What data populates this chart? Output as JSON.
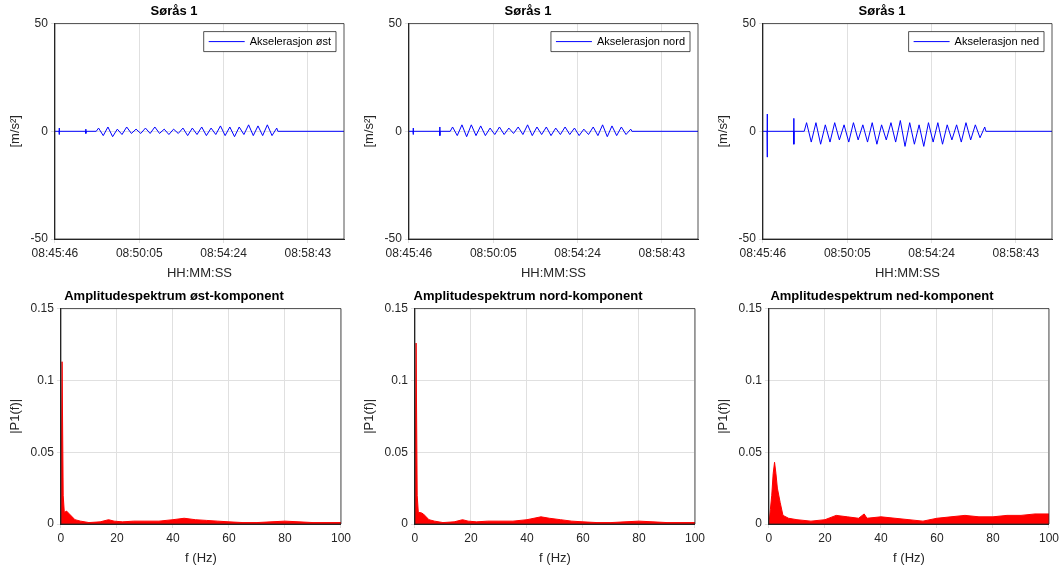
{
  "chart_data": [
    {
      "type": "line",
      "title": "Sørås 1",
      "xlabel": "HH:MM:SS",
      "ylabel": "[m/s²]",
      "grid": true,
      "legend": "top right",
      "xlim": [
        8.762778,
        9.0094
      ],
      "xticks": [
        {
          "value": 8.762778,
          "label": "08:45:46"
        },
        {
          "value": 8.834722,
          "label": "08:50:05"
        },
        {
          "value": 8.906667,
          "label": "08:54:24"
        },
        {
          "value": 8.978611,
          "label": "08:58:43"
        }
      ],
      "ylim": [
        -50,
        50
      ],
      "yticks": [
        -50,
        0,
        50
      ],
      "x": [
        8.7628,
        8.7663,
        8.7664,
        8.7665,
        8.7666,
        8.789,
        8.7891,
        8.7892,
        8.7893,
        8.798,
        8.8,
        8.804,
        8.808,
        8.812,
        8.816,
        8.82,
        8.824,
        8.828,
        8.832,
        8.836,
        8.84,
        8.844,
        8.848,
        8.852,
        8.856,
        8.86,
        8.864,
        8.868,
        8.872,
        8.876,
        8.88,
        8.884,
        8.888,
        8.892,
        8.896,
        8.9,
        8.904,
        8.908,
        8.912,
        8.916,
        8.92,
        8.924,
        8.928,
        8.932,
        8.936,
        8.94,
        8.944,
        8.948,
        8.952,
        8.953,
        9.0094
      ],
      "series": [
        {
          "name": "Akselerasjon øst",
          "color": "#0000ff",
          "values": [
            0,
            0,
            1.5,
            -1.5,
            0,
            0,
            1,
            -1,
            0,
            0,
            1.5,
            -2,
            2,
            -2.5,
            1,
            -1.5,
            2,
            -1,
            1,
            -1,
            1.5,
            -1,
            2,
            -1,
            1,
            -1.5,
            1,
            -1,
            1.5,
            -2,
            1.5,
            -1.5,
            2,
            -2,
            1.5,
            -1.5,
            2.5,
            -2,
            2,
            -2.5,
            2,
            -1.5,
            3,
            -2,
            2.5,
            -2,
            3,
            -2,
            1.5,
            0,
            0
          ]
        }
      ]
    },
    {
      "type": "line",
      "title": "Sørås 1",
      "xlabel": "HH:MM:SS",
      "ylabel": "[m/s²]",
      "grid": true,
      "legend": "top right",
      "xlim": [
        8.762778,
        9.0094
      ],
      "xticks": [
        {
          "value": 8.762778,
          "label": "08:45:46"
        },
        {
          "value": 8.834722,
          "label": "08:50:05"
        },
        {
          "value": 8.906667,
          "label": "08:54:24"
        },
        {
          "value": 8.978611,
          "label": "08:58:43"
        }
      ],
      "ylim": [
        -50,
        50
      ],
      "yticks": [
        -50,
        0,
        50
      ],
      "x": [
        8.7628,
        8.7663,
        8.7664,
        8.7665,
        8.7666,
        8.789,
        8.7891,
        8.7892,
        8.7893,
        8.798,
        8.8,
        8.804,
        8.808,
        8.812,
        8.816,
        8.82,
        8.824,
        8.828,
        8.832,
        8.836,
        8.84,
        8.844,
        8.848,
        8.852,
        8.856,
        8.86,
        8.864,
        8.868,
        8.872,
        8.876,
        8.88,
        8.884,
        8.888,
        8.892,
        8.896,
        8.9,
        8.904,
        8.908,
        8.912,
        8.916,
        8.92,
        8.924,
        8.928,
        8.932,
        8.936,
        8.94,
        8.944,
        8.948,
        8.952,
        8.953,
        9.0094
      ],
      "series": [
        {
          "name": "Akselerasjon nord",
          "color": "#0000ff",
          "values": [
            0,
            0,
            1.5,
            -1.5,
            0,
            0,
            2,
            -2,
            0,
            0,
            2,
            -2,
            3,
            -2.5,
            3,
            -2,
            2.5,
            -2,
            1.5,
            -1.5,
            2,
            -1.5,
            1.5,
            -1,
            2,
            -1.5,
            3,
            -2,
            2,
            -1.5,
            2,
            -2,
            1.5,
            -1.5,
            2,
            -1.5,
            1.5,
            -2,
            1,
            -1.5,
            2,
            -2,
            3,
            -2.5,
            2.5,
            -2,
            2,
            -1.5,
            1,
            0,
            0
          ]
        }
      ]
    },
    {
      "type": "line",
      "title": "Sørås 1",
      "xlabel": "HH:MM:SS",
      "ylabel": "[m/s²]",
      "grid": true,
      "legend": "top right",
      "xlim": [
        8.762778,
        9.0094
      ],
      "xticks": [
        {
          "value": 8.762778,
          "label": "08:45:46"
        },
        {
          "value": 8.834722,
          "label": "08:50:05"
        },
        {
          "value": 8.906667,
          "label": "08:54:24"
        },
        {
          "value": 8.978611,
          "label": "08:58:43"
        }
      ],
      "ylim": [
        -50,
        50
      ],
      "yticks": [
        -50,
        0,
        50
      ],
      "x": [
        8.7628,
        8.7663,
        8.7664,
        8.7665,
        8.7666,
        8.789,
        8.7891,
        8.7892,
        8.7893,
        8.798,
        8.8,
        8.804,
        8.808,
        8.812,
        8.816,
        8.82,
        8.824,
        8.828,
        8.832,
        8.836,
        8.84,
        8.844,
        8.848,
        8.852,
        8.856,
        8.86,
        8.864,
        8.868,
        8.872,
        8.876,
        8.88,
        8.884,
        8.888,
        8.892,
        8.896,
        8.9,
        8.904,
        8.908,
        8.912,
        8.916,
        8.92,
        8.924,
        8.928,
        8.932,
        8.936,
        8.94,
        8.944,
        8.948,
        8.952,
        8.953,
        9.0094
      ],
      "series": [
        {
          "name": "Akselerasjon ned",
          "color": "#0000ff",
          "values": [
            0,
            0,
            8,
            -12,
            0,
            0,
            6,
            -6,
            0,
            0,
            4,
            -5,
            4,
            -6,
            3,
            -5,
            4,
            -4,
            3,
            -5,
            4,
            -4,
            3,
            -5,
            4,
            -6,
            3,
            -4,
            4,
            -5,
            5,
            -7,
            4,
            -6,
            3,
            -7,
            4,
            -5,
            4,
            -6,
            3,
            -4,
            3,
            -5,
            4,
            -4,
            3,
            -3,
            2,
            0,
            0
          ]
        }
      ]
    },
    {
      "type": "area",
      "title": "Amplitudespektrum øst-komponent",
      "xlabel": "f (Hz)",
      "ylabel": "|P1(f)|",
      "grid": true,
      "color": "#ff0000",
      "xlim": [
        0,
        100
      ],
      "xticks": [
        0,
        20,
        40,
        60,
        80,
        100
      ],
      "ylim": [
        0,
        0.15
      ],
      "yticks": [
        0,
        0.05,
        0.1,
        0.15
      ],
      "x": [
        0,
        0.4,
        0.8,
        1.2,
        2,
        3,
        4,
        5,
        7,
        10,
        14,
        17,
        19,
        22,
        26,
        30,
        35,
        40,
        44,
        48,
        52,
        56,
        60,
        65,
        70,
        75,
        80,
        85,
        90,
        95,
        100
      ],
      "values": [
        0,
        0.113,
        0.02,
        0.008,
        0.009,
        0.007,
        0.005,
        0.003,
        0.002,
        0.001,
        0.0015,
        0.003,
        0.002,
        0.0015,
        0.002,
        0.002,
        0.002,
        0.003,
        0.004,
        0.003,
        0.0025,
        0.002,
        0.0015,
        0.001,
        0.001,
        0.0015,
        0.002,
        0.0015,
        0.001,
        0.001,
        0.001
      ]
    },
    {
      "type": "area",
      "title": "Amplitudespektrum nord-komponent",
      "xlabel": "f (Hz)",
      "ylabel": "|P1(f)|",
      "grid": true,
      "color": "#ff0000",
      "xlim": [
        0,
        100
      ],
      "xticks": [
        0,
        20,
        40,
        60,
        80,
        100
      ],
      "ylim": [
        0,
        0.15
      ],
      "yticks": [
        0,
        0.05,
        0.1,
        0.15
      ],
      "x": [
        0,
        0.4,
        0.8,
        1.2,
        2,
        3,
        4,
        5,
        7,
        10,
        14,
        17,
        19,
        22,
        26,
        30,
        35,
        40,
        45,
        48,
        52,
        56,
        60,
        65,
        70,
        75,
        80,
        85,
        90,
        95,
        100
      ],
      "values": [
        0,
        0.126,
        0.02,
        0.008,
        0.008,
        0.007,
        0.005,
        0.003,
        0.002,
        0.001,
        0.0015,
        0.003,
        0.002,
        0.0015,
        0.002,
        0.002,
        0.002,
        0.003,
        0.005,
        0.004,
        0.003,
        0.002,
        0.0015,
        0.001,
        0.001,
        0.0015,
        0.002,
        0.0015,
        0.001,
        0.001,
        0.001
      ]
    },
    {
      "type": "area",
      "title": "Amplitudespektrum ned-komponent",
      "xlabel": "f (Hz)",
      "ylabel": "|P1(f)|",
      "grid": true,
      "color": "#ff0000",
      "xlim": [
        0,
        100
      ],
      "xticks": [
        0,
        20,
        40,
        60,
        80,
        100
      ],
      "ylim": [
        0,
        0.15
      ],
      "yticks": [
        0,
        0.05,
        0.1,
        0.15
      ],
      "x": [
        0,
        0.5,
        1,
        1.5,
        2,
        2.5,
        3,
        4,
        5,
        7,
        10,
        15,
        20,
        24,
        28,
        32,
        34,
        35,
        40,
        45,
        50,
        55,
        60,
        65,
        70,
        75,
        80,
        85,
        90,
        95,
        100
      ],
      "values": [
        0,
        0.01,
        0.02,
        0.035,
        0.043,
        0.035,
        0.025,
        0.015,
        0.006,
        0.004,
        0.003,
        0.002,
        0.003,
        0.006,
        0.005,
        0.004,
        0.007,
        0.004,
        0.005,
        0.004,
        0.003,
        0.002,
        0.004,
        0.005,
        0.006,
        0.005,
        0.005,
        0.006,
        0.006,
        0.007,
        0.007
      ]
    }
  ]
}
